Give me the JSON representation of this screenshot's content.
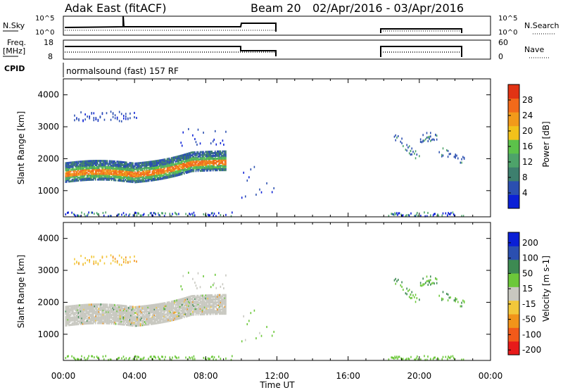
{
  "header": {
    "station": "Adak East (fitACF)",
    "beam": "Beam 20",
    "date_range": "02/Apr/2016 - 03/Apr/2016"
  },
  "panels": {
    "nsky": {
      "left_label": "N.Sky",
      "left_ticks": [
        "10^5",
        "10^0"
      ],
      "right_ticks": [
        "10^5",
        "10^0"
      ],
      "right_label": "N.Search"
    },
    "freq": {
      "left_label_1": "Freq.",
      "left_label_2": "[MHz]",
      "left_ticks": [
        "18",
        "8"
      ],
      "right_ticks": [
        "60",
        "0"
      ],
      "right_label": "Nave"
    },
    "cpid": {
      "left_label": "CPID",
      "text": "normalsound (fast) 157 RF"
    }
  },
  "colors": {
    "power_scale": [
      "#0a1fd6",
      "#2b4fb0",
      "#3d7f6e",
      "#4da36a",
      "#5cc24a",
      "#f2c21a",
      "#f29a1a",
      "#f26a1a",
      "#e23314"
    ],
    "velocity_scale": [
      "#e81a1a",
      "#f25a1a",
      "#f2941a",
      "#f2c83a",
      "#c8c8c0",
      "#6cc83a",
      "#3d8a52",
      "#2b4fb0",
      "#0a1fd6"
    ]
  },
  "chart_data": [
    {
      "type": "heatmap",
      "title": "Power",
      "ylabel": "Slant Range [km]",
      "xlabel": "Time UT",
      "xlim": [
        "00:00",
        "24:00"
      ],
      "ylim": [
        180,
        4500
      ],
      "x_ticks": [
        "00:00",
        "04:00",
        "08:00",
        "12:00",
        "16:00",
        "20:00",
        "00:00"
      ],
      "y_ticks": [
        1000,
        2000,
        3000,
        4000
      ],
      "colorbar": {
        "label": "Power [dB]",
        "ticks": [
          4,
          8,
          12,
          16,
          20,
          24,
          28
        ]
      },
      "data_periods_ut": [
        [
          "00:00",
          "12:00"
        ],
        [
          "18:00",
          "22:30"
        ]
      ],
      "echo_regions": [
        {
          "time_ut": [
            0.1,
            9.1
          ],
          "range_km": [
            1350,
            2500
          ],
          "power_db": "8-28"
        },
        {
          "time_ut": [
            0.6,
            4.1
          ],
          "range_km": [
            3150,
            3550
          ],
          "power_db": "4-8"
        },
        {
          "time_ut": [
            10.0,
            11.8
          ],
          "range_km": [
            800,
            2000
          ],
          "power_db": "4-8"
        },
        {
          "time_ut": [
            18.5,
            22.5
          ],
          "range_km": [
            1800,
            3000
          ],
          "power_db": "4-12"
        }
      ]
    },
    {
      "type": "heatmap",
      "title": "Velocity",
      "ylabel": "Slant Range [km]",
      "xlabel": "Time UT",
      "xlim": [
        "00:00",
        "24:00"
      ],
      "ylim": [
        180,
        4500
      ],
      "x_ticks": [
        "00:00",
        "04:00",
        "08:00",
        "12:00",
        "16:00",
        "20:00",
        "00:00"
      ],
      "y_ticks": [
        1000,
        2000,
        3000,
        4000
      ],
      "colorbar": {
        "label": "Velocity [m s-1]",
        "ticks": [
          200,
          100,
          50,
          15,
          -15,
          -50,
          -100,
          -200
        ]
      },
      "echo_regions": [
        {
          "time_ut": [
            0.1,
            9.1
          ],
          "range_km": [
            1350,
            2500
          ],
          "velocity_ms": "-15 to 15"
        },
        {
          "time_ut": [
            0.6,
            4.1
          ],
          "range_km": [
            3150,
            3550
          ],
          "velocity_ms": "-50 to -15"
        },
        {
          "time_ut": [
            10.0,
            11.8
          ],
          "range_km": [
            800,
            2000
          ],
          "velocity_ms": "15 to 50"
        },
        {
          "time_ut": [
            18.5,
            22.5
          ],
          "range_km": [
            1800,
            3000
          ],
          "velocity_ms": "15 to 100"
        }
      ]
    }
  ]
}
